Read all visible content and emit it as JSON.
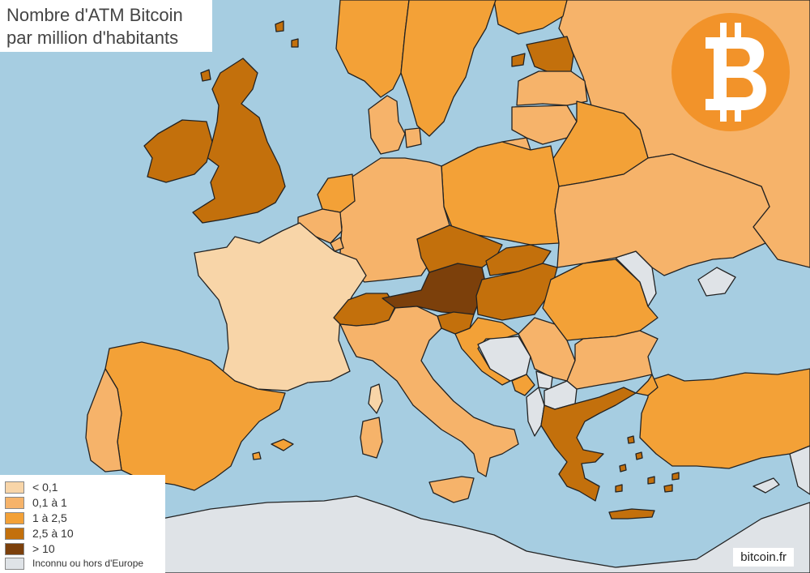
{
  "title": {
    "line1": "Nombre d'ATM Bitcoin",
    "line2": "par million d'habitants"
  },
  "legend": [
    {
      "label": "< 0,1",
      "color": "#f8d5a8"
    },
    {
      "label": "0,1 à 1",
      "color": "#f6b36a"
    },
    {
      "label": "1 à 2,5",
      "color": "#f3a137"
    },
    {
      "label": "2,5 à 10",
      "color": "#c3700c"
    },
    {
      "label": "> 10",
      "color": "#7c400b"
    },
    {
      "label": "Inconnu ou hors d'Europe",
      "color": "#dfe3e7"
    }
  ],
  "colors": {
    "sea": "#a6cde1",
    "unknown": "#dfe3e7",
    "logo_circle": "#f2932a",
    "logo_symbol": "#ffffff"
  },
  "logo": {
    "symbol": "B",
    "icon": "bitcoin-logo-icon"
  },
  "credit": "bitcoin.fr",
  "regions": [
    {
      "name": "France",
      "class": "< 0,1"
    },
    {
      "name": "Spain",
      "class": "1 à 2,5"
    },
    {
      "name": "Portugal",
      "class": "0,1 à 1"
    },
    {
      "name": "United Kingdom",
      "class": "2,5 à 10"
    },
    {
      "name": "Ireland",
      "class": "2,5 à 10"
    },
    {
      "name": "Belgium",
      "class": "0,1 à 1"
    },
    {
      "name": "Netherlands",
      "class": "1 à 2,5"
    },
    {
      "name": "Luxembourg",
      "class": "0,1 à 1"
    },
    {
      "name": "Germany",
      "class": "0,1 à 1"
    },
    {
      "name": "Denmark",
      "class": "0,1 à 1"
    },
    {
      "name": "Norway",
      "class": "1 à 2,5"
    },
    {
      "name": "Sweden",
      "class": "1 à 2,5"
    },
    {
      "name": "Finland",
      "class": "1 à 2,5"
    },
    {
      "name": "Estonia",
      "class": "2,5 à 10"
    },
    {
      "name": "Latvia",
      "class": "0,1 à 1"
    },
    {
      "name": "Lithuania",
      "class": "0,1 à 1"
    },
    {
      "name": "Poland",
      "class": "1 à 2,5"
    },
    {
      "name": "Czech Republic",
      "class": "2,5 à 10"
    },
    {
      "name": "Austria",
      "class": "> 10"
    },
    {
      "name": "Switzerland",
      "class": "2,5 à 10"
    },
    {
      "name": "Slovakia",
      "class": "2,5 à 10"
    },
    {
      "name": "Hungary",
      "class": "2,5 à 10"
    },
    {
      "name": "Slovenia",
      "class": "2,5 à 10"
    },
    {
      "name": "Croatia",
      "class": "1 à 2,5"
    },
    {
      "name": "Bosnia and Herzegovina",
      "class": "Inconnu ou hors d'Europe"
    },
    {
      "name": "Serbia",
      "class": "0,1 à 1"
    },
    {
      "name": "Montenegro",
      "class": "1 à 2,5"
    },
    {
      "name": "Kosovo",
      "class": "Inconnu ou hors d'Europe"
    },
    {
      "name": "Albania",
      "class": "Inconnu ou hors d'Europe"
    },
    {
      "name": "North Macedonia",
      "class": "Inconnu ou hors d'Europe"
    },
    {
      "name": "Greece",
      "class": "2,5 à 10"
    },
    {
      "name": "Bulgaria",
      "class": "0,1 à 1"
    },
    {
      "name": "Romania",
      "class": "1 à 2,5"
    },
    {
      "name": "Moldova",
      "class": "Inconnu ou hors d'Europe"
    },
    {
      "name": "Ukraine",
      "class": "0,1 à 1"
    },
    {
      "name": "Belarus",
      "class": "0,1 à 1"
    },
    {
      "name": "Russia",
      "class": "0,1 à 1"
    },
    {
      "name": "Italy",
      "class": "0,1 à 1"
    },
    {
      "name": "Turkey",
      "class": "1 à 2,5"
    },
    {
      "name": "Cyprus",
      "class": "Inconnu ou hors d'Europe"
    }
  ]
}
